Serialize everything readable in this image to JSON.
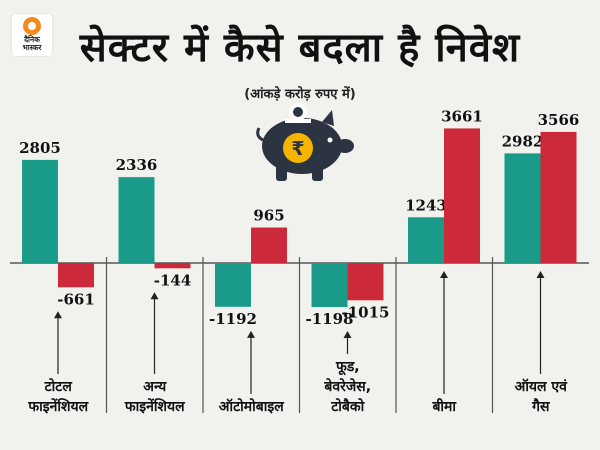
{
  "brand": {
    "logo_text_line1": "दैनिक",
    "logo_text_line2": "भास्कर",
    "accent": "#f58a1f"
  },
  "colors": {
    "series_a": "#1a9a89",
    "series_b": "#cc2a3a",
    "divider": "#555555",
    "pig": "#2b3440",
    "rupee_coin": "#f4b400"
  },
  "chart_data": {
    "type": "bar",
    "title": "सेक्टर में कैसे बदला है निवेश",
    "subtitle": "(आंकड़े करोड़ रुपए में)",
    "categories": [
      [
        "टोटल",
        "फाइनेंशियल"
      ],
      [
        "अन्य",
        "फाइनेंशियल"
      ],
      [
        "ऑटोमोबाइल"
      ],
      [
        "फूड,",
        "बेवरेजेस,",
        "टोबैको"
      ],
      [
        "बीमा"
      ],
      [
        "ऑयल एवं",
        "गैस"
      ]
    ],
    "series": [
      {
        "values": [
          2805,
          2336,
          -1192,
          -1198,
          1243,
          2982
        ]
      },
      {
        "values": [
          -661,
          -144,
          965,
          -1015,
          3661,
          3566
        ]
      }
    ],
    "value_labels": [
      [
        "2805",
        "2336",
        "-1192",
        "-1198",
        "1243",
        "2982"
      ],
      [
        "-661",
        "-144",
        "965",
        "-1015",
        "3661",
        "3566"
      ]
    ],
    "ylim": [
      -1350,
      3700
    ],
    "grid": false,
    "legend": "none",
    "icon": "piggy-bank-rupee-icon"
  }
}
